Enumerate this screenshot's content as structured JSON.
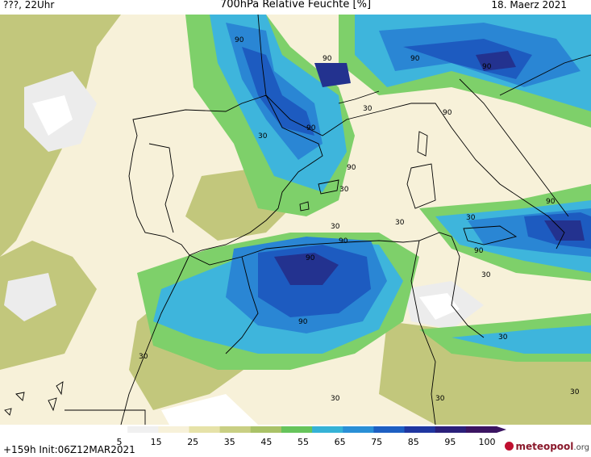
{
  "header": {
    "left": "???, 22Uhr",
    "title": "700hPa Relative Feuchte [%]",
    "date": "18. Maerz 2021"
  },
  "footer": {
    "init": "+159h  Init:06Z12MAR2021",
    "logo_main": "meteopool",
    "logo_tld": ".org"
  },
  "colorbar": {
    "labels": [
      "5",
      "15",
      "25",
      "35",
      "45",
      "55",
      "65",
      "75",
      "85",
      "95",
      "100"
    ],
    "colors": [
      "#ffffff",
      "#f0f0f0",
      "#f7f1d9",
      "#e6e2a8",
      "#c9cf83",
      "#a9c267",
      "#66c45b",
      "#35b2d6",
      "#2a8fd6",
      "#1d5fc2",
      "#1f36a0",
      "#2a1f7a",
      "#3b1461"
    ]
  },
  "contour_labels": [
    "30",
    "90"
  ],
  "colors": {
    "land_outline": "#000000",
    "moist_core": "#23328f",
    "dry_core": "#ffffff"
  }
}
